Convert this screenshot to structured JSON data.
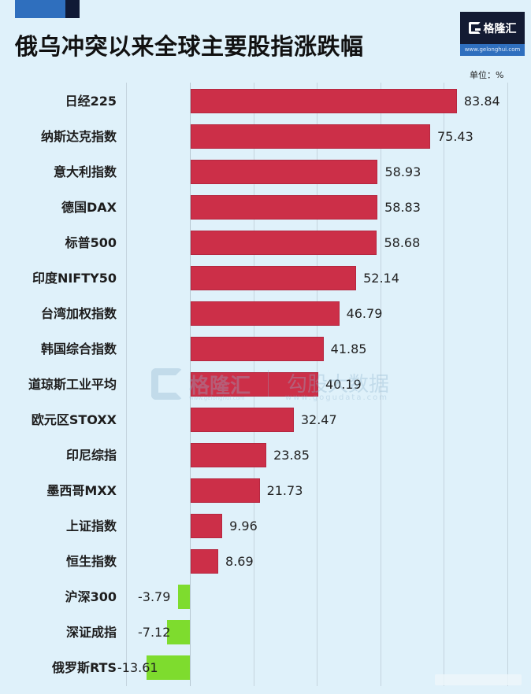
{
  "header": {
    "title": "俄乌冲突以来全球主要股指涨跌幅",
    "unit_label": "单位：%"
  },
  "logo": {
    "name": "格隆汇",
    "url": "www.gelonghui.com"
  },
  "watermark": {
    "brand1": "格隆汇",
    "brand2": "勾股大数据",
    "url1": "www.gelonghui.com",
    "url2": "www.gogudata.com"
  },
  "colors": {
    "background": "#dff1fa",
    "positive_bar": "#cc2f48",
    "negative_bar": "#7edc2e",
    "accent_blue": "#2f6fbe",
    "accent_navy": "#101a36"
  },
  "chart_data": {
    "type": "bar",
    "orientation": "horizontal",
    "title": "俄乌冲突以来全球主要股指涨跌幅",
    "unit": "%",
    "xlabel": "",
    "ylabel": "",
    "xlim": [
      -20,
      100
    ],
    "grid": true,
    "grid_step": 20,
    "legend": null,
    "categories": [
      "日经225",
      "纳斯达克指数",
      "意大利指数",
      "德国DAX",
      "标普500",
      "印度NIFTY50",
      "台湾加权指数",
      "韩国综合指数",
      "道琼斯工业平均",
      "欧元区STOXX",
      "印尼综指",
      "墨西哥MXX",
      "上证指数",
      "恒生指数",
      "沪深300",
      "深证成指",
      "俄罗斯RTS"
    ],
    "values": [
      83.84,
      75.43,
      58.93,
      58.83,
      58.68,
      52.14,
      46.79,
      41.85,
      40.19,
      32.47,
      23.85,
      21.73,
      9.96,
      8.69,
      -3.79,
      -7.12,
      -13.61
    ],
    "value_labels": [
      "83.84",
      "75.43",
      "58.93",
      "58.83",
      "58.68",
      "52.14",
      "46.79",
      "41.85",
      "40.19",
      "32.47",
      "23.85",
      "21.73",
      "9.96",
      "8.69",
      "-3.79",
      "-7.12",
      "-13.61"
    ]
  }
}
